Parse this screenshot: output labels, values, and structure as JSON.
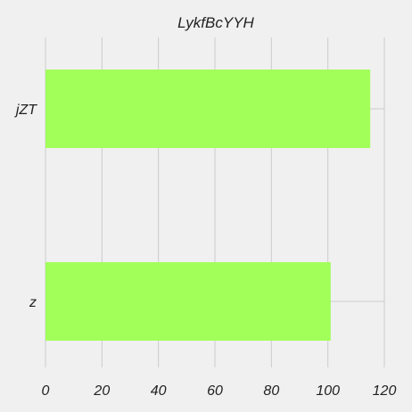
{
  "chart_data": {
    "type": "bar",
    "orientation": "horizontal",
    "title": "LykfBcYYH",
    "categories": [
      "jZT",
      "z"
    ],
    "values": [
      115,
      101
    ],
    "xlabel": "",
    "ylabel": "",
    "xlim": [
      0,
      120
    ],
    "xticks": [
      0,
      20,
      40,
      60,
      80,
      100,
      120
    ],
    "grid": true,
    "legend": "none",
    "bar_color": "#a2ff5a",
    "background": "#f0f0f0",
    "grid_color": "#cbcbcb"
  }
}
